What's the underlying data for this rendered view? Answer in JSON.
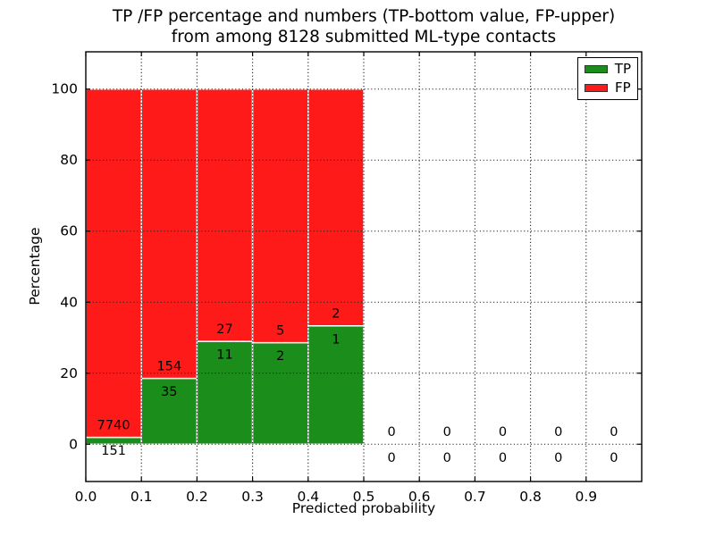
{
  "figure": {
    "title_line1": "TP /FP percentage and numbers (TP-bottom value, FP-upper)",
    "title_line2": "from among 8128 submitted ML-type contacts",
    "background_color": "#ffffff"
  },
  "chart_data": {
    "type": "bar",
    "variant": "stacked-percentage-histogram",
    "title": "TP /FP percentage and numbers (TP-bottom value, FP-upper)\nfrom among 8128 submitted ML-type contacts",
    "xlabel": "Predicted probability",
    "ylabel": "Percentage",
    "xlim": [
      0.0,
      1.0
    ],
    "ylim": [
      -10.5,
      110.5
    ],
    "x_ticks": [
      "0.0",
      "0.1",
      "0.2",
      "0.3",
      "0.4",
      "0.5",
      "0.6",
      "0.7",
      "0.8",
      "0.9"
    ],
    "y_ticks": [
      "0",
      "20",
      "40",
      "60",
      "80",
      "100"
    ],
    "grid": "dotted-black-on",
    "legend": {
      "position": "upper-right",
      "entries": [
        {
          "label": "TP",
          "color": "#1a8d1a"
        },
        {
          "label": "FP",
          "color": "#ff1a1a"
        }
      ]
    },
    "bin_width": 0.1,
    "total_contacts": 8128,
    "bars": [
      {
        "bin_start": 0.0,
        "bin_end": 0.1,
        "tp": 151,
        "fp": 7740,
        "tp_pct": 1.91,
        "fp_pct": 98.09
      },
      {
        "bin_start": 0.1,
        "bin_end": 0.2,
        "tp": 35,
        "fp": 154,
        "tp_pct": 18.52,
        "fp_pct": 81.48
      },
      {
        "bin_start": 0.2,
        "bin_end": 0.3,
        "tp": 11,
        "fp": 27,
        "tp_pct": 28.95,
        "fp_pct": 71.05
      },
      {
        "bin_start": 0.3,
        "bin_end": 0.4,
        "tp": 2,
        "fp": 5,
        "tp_pct": 28.57,
        "fp_pct": 71.43
      },
      {
        "bin_start": 0.4,
        "bin_end": 0.5,
        "tp": 1,
        "fp": 2,
        "tp_pct": 33.33,
        "fp_pct": 66.67
      },
      {
        "bin_start": 0.5,
        "bin_end": 0.6,
        "tp": 0,
        "fp": 0,
        "tp_pct": 0,
        "fp_pct": 0
      },
      {
        "bin_start": 0.6,
        "bin_end": 0.7,
        "tp": 0,
        "fp": 0,
        "tp_pct": 0,
        "fp_pct": 0
      },
      {
        "bin_start": 0.7,
        "bin_end": 0.8,
        "tp": 0,
        "fp": 0,
        "tp_pct": 0,
        "fp_pct": 0
      },
      {
        "bin_start": 0.8,
        "bin_end": 0.9,
        "tp": 0,
        "fp": 0,
        "tp_pct": 0,
        "fp_pct": 0
      },
      {
        "bin_start": 0.9,
        "bin_end": 1.0,
        "tp": 0,
        "fp": 0,
        "tp_pct": 0,
        "fp_pct": 0
      }
    ],
    "colors": {
      "tp": "#1a8d1a",
      "fp": "#ff1a1a",
      "bar_edge": "#ffffff",
      "grid": "#222222",
      "axis": "#000000",
      "text": "#000000"
    }
  }
}
